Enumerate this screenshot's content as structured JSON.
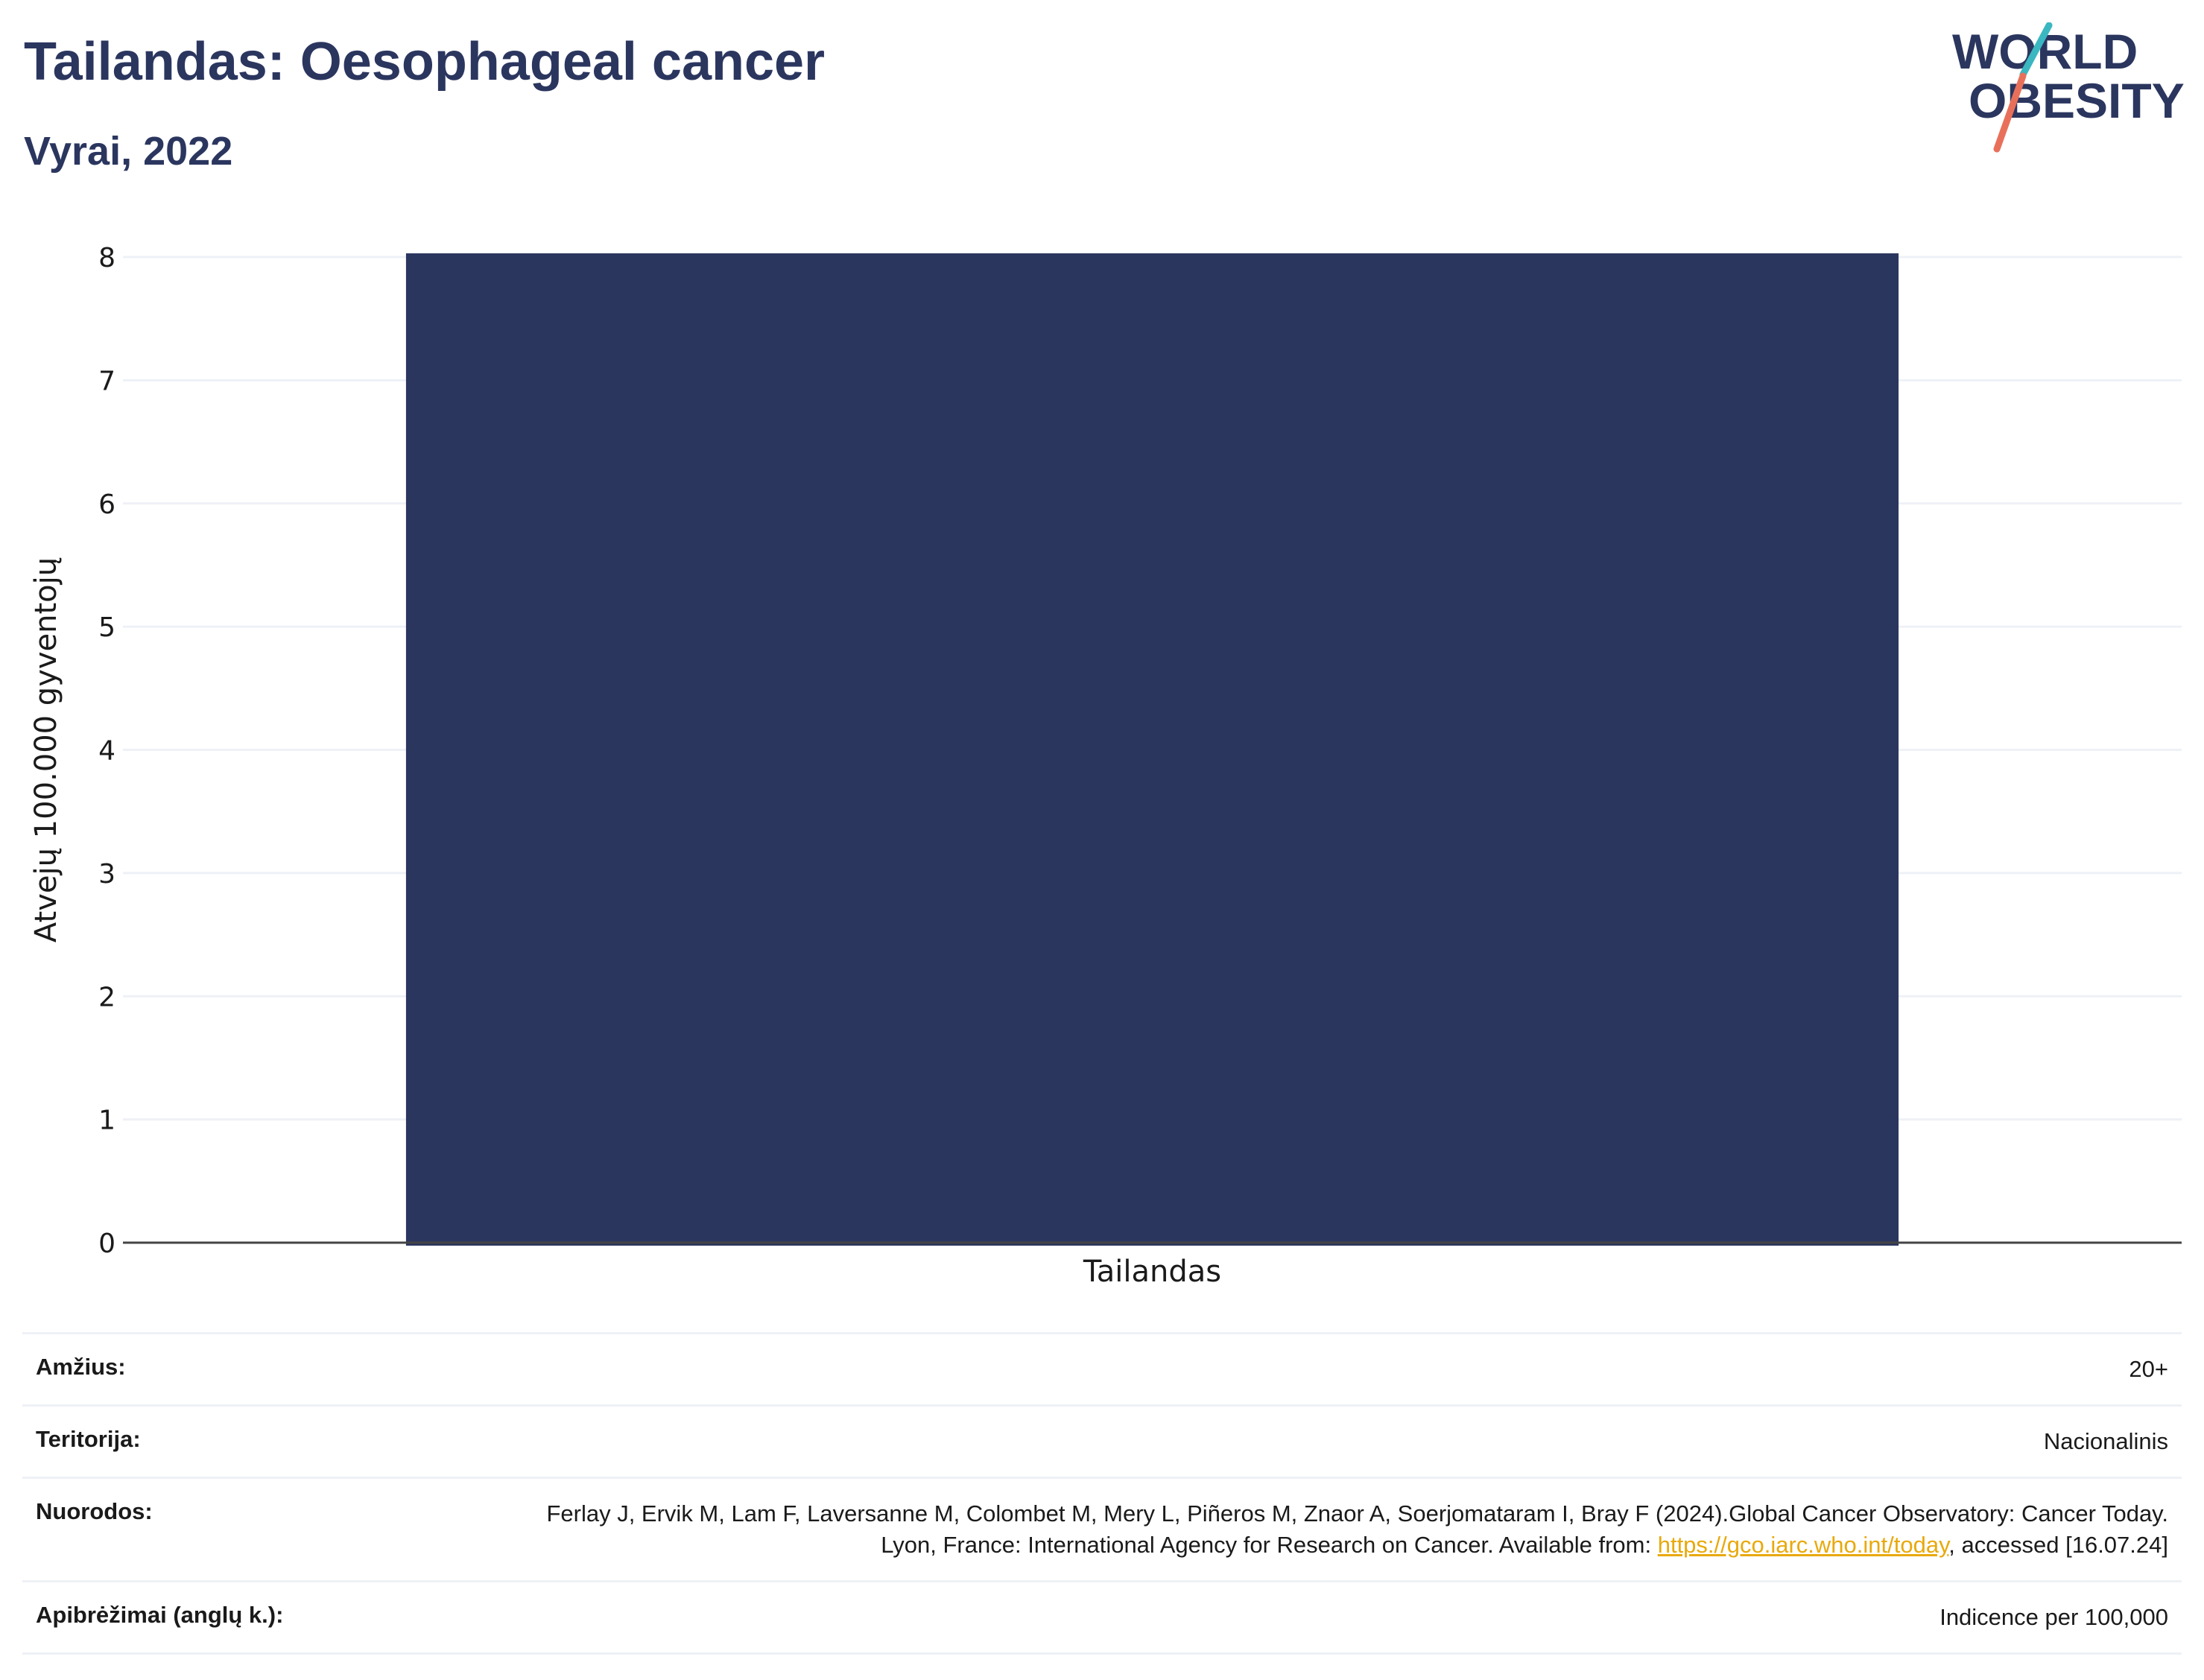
{
  "header": {
    "title": "Tailandas: Oesophageal cancer",
    "subtitle": "Vyrai, 2022"
  },
  "logo": {
    "line1": "WORLD",
    "line2": "OBESITY",
    "colors": {
      "text": "#2b365f",
      "slash_top": "#3ab7c1",
      "slash_bottom": "#e8705a"
    }
  },
  "chart_data": {
    "type": "bar",
    "categories": [
      "Tailandas"
    ],
    "values": [
      8.03
    ],
    "title": "",
    "xlabel": "",
    "ylabel": "Atvejų 100.000 gyventojų",
    "ylim": [
      0,
      8
    ],
    "yticks": [
      0,
      1,
      2,
      3,
      4,
      5,
      6,
      7,
      8
    ],
    "grid": true,
    "bar_color": "#2b365f"
  },
  "meta": {
    "age_label": "Amžius:",
    "age_value": "20+",
    "territory_label": "Teritorija:",
    "territory_value": "Nacionalinis",
    "refs_label": "Nuorodos:",
    "refs_text_1": "Ferlay J, Ervik M, Lam F, Laversanne M, Colombet M, Mery L, Piñeros M, Znaor A, Soerjomataram I, Bray F (2024).Global Cancer Observatory: Cancer Today. Lyon, France: International Agency for Research on Cancer. Available from: ",
    "refs_link": "https://gco.iarc.who.int/today",
    "refs_text_2": ", accessed [16.07.24]",
    "definitions_label": "Apibrėžimai (anglų k.):",
    "definitions_value": "Indicence per 100,000"
  }
}
